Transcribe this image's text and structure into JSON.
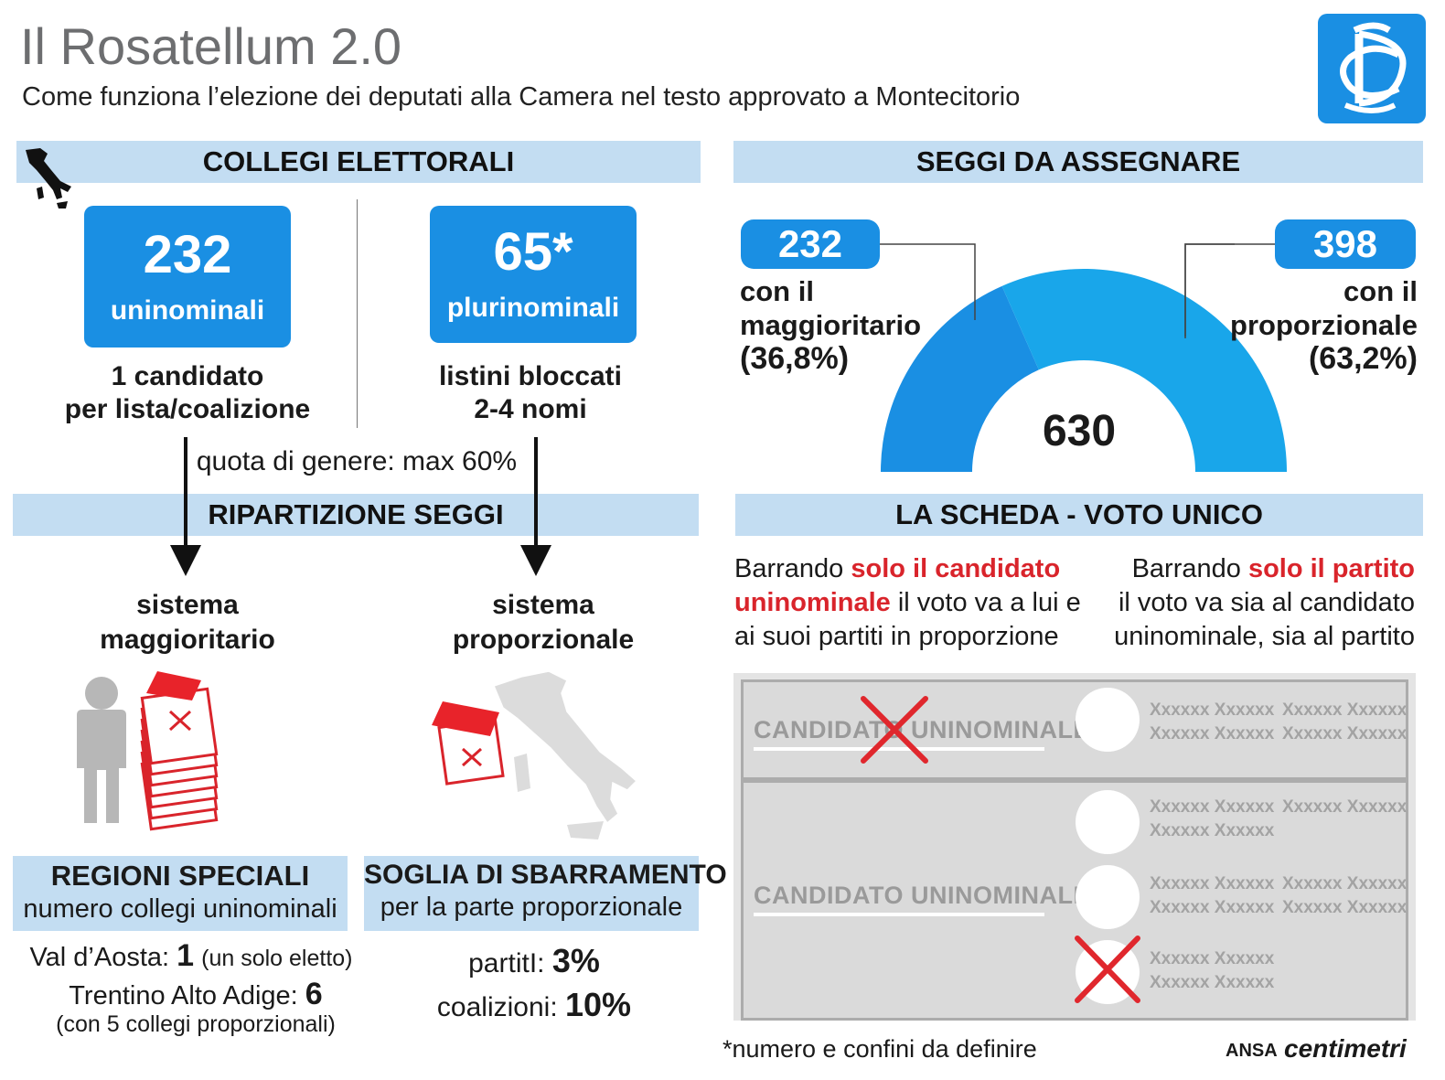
{
  "header": {
    "title": "Il Rosatellum 2.0",
    "subtitle": "Come funziona l’elezione dei deputati alla Camera nel testo approvato a Montecitorio"
  },
  "collegi": {
    "heading": "COLLEGI ELETTORALI",
    "uninominali": {
      "number": "232",
      "label": "uninominali",
      "desc_line1": "1 candidato",
      "desc_line2": "per lista/coalizione"
    },
    "plurinominali": {
      "number": "65*",
      "label": "plurinominali",
      "desc_line1": "listini bloccati",
      "desc_line2": "2-4 nomi"
    },
    "quota": "quota di genere: max 60%"
  },
  "ripartizione": {
    "heading": "RIPARTIZIONE SEGGI",
    "maggioritario_line1": "sistema",
    "maggioritario_line2": "maggioritario",
    "proporzionale_line1": "sistema",
    "proporzionale_line2": "proporzionale"
  },
  "regioni": {
    "heading": "REGIONI SPECIALI",
    "subheading": "numero collegi uninominali",
    "vda_label": "Val d’Aosta:",
    "vda_value": "1",
    "vda_note": "(un solo eletto)",
    "taa_label": "Trentino Alto Adige:",
    "taa_value": "6",
    "taa_note": "(con 5 collegi proporzionali)"
  },
  "soglia": {
    "heading": "SOGLIA DI SBARRAMENTO",
    "subheading": "per la parte proporzionale",
    "partiti_label": "partitI:",
    "partiti_value": "3%",
    "coalizioni_label": "coalizioni:",
    "coalizioni_value": "10%"
  },
  "seggi": {
    "heading": "SEGGI DA ASSEGNARE",
    "total": "630",
    "maggioritario": {
      "value": "232",
      "line1": "con il",
      "line2": "maggioritario",
      "pct": "(36,8%)",
      "share": 0.368,
      "color": "#1a8fe3"
    },
    "proporzionale": {
      "value": "398",
      "line1": "con il",
      "line2": "proporzionale",
      "pct": "(63,2%)",
      "share": 0.632,
      "color": "#19a6ea"
    }
  },
  "scheda": {
    "heading": "LA SCHEDA - VOTO UNICO",
    "left_pre": "Barrando ",
    "left_red1": "solo il candidato",
    "left_red2": "uninominale",
    "left_post1": " il voto va a lui e",
    "left_post2": "ai suoi partiti in proporzione",
    "right_pre": "Barrando ",
    "right_red": "solo il partito",
    "right_line2": "il voto va sia al candidato",
    "right_line3": "uninominale, sia al partito",
    "candidate_label": "CANDIDATO UNINOMINALE",
    "placeholder": "Xxxxxx Xxxxxx"
  },
  "footer": {
    "note": "*numero e confini da definire",
    "credit_ansa": "ANSA",
    "credit_centimetri": "centimetri"
  },
  "colors": {
    "accent": "#1a8fe3",
    "band": "#c3ddf2",
    "red": "#d9242b",
    "grey": "#bdbdbd"
  },
  "icons": [
    "camera-dei-deputati-logo-icon",
    "italy-map-icon",
    "person-icon",
    "ballot-stack-icon",
    "ballot-icon",
    "cross-mark-icon",
    "arrow-down-icon"
  ]
}
